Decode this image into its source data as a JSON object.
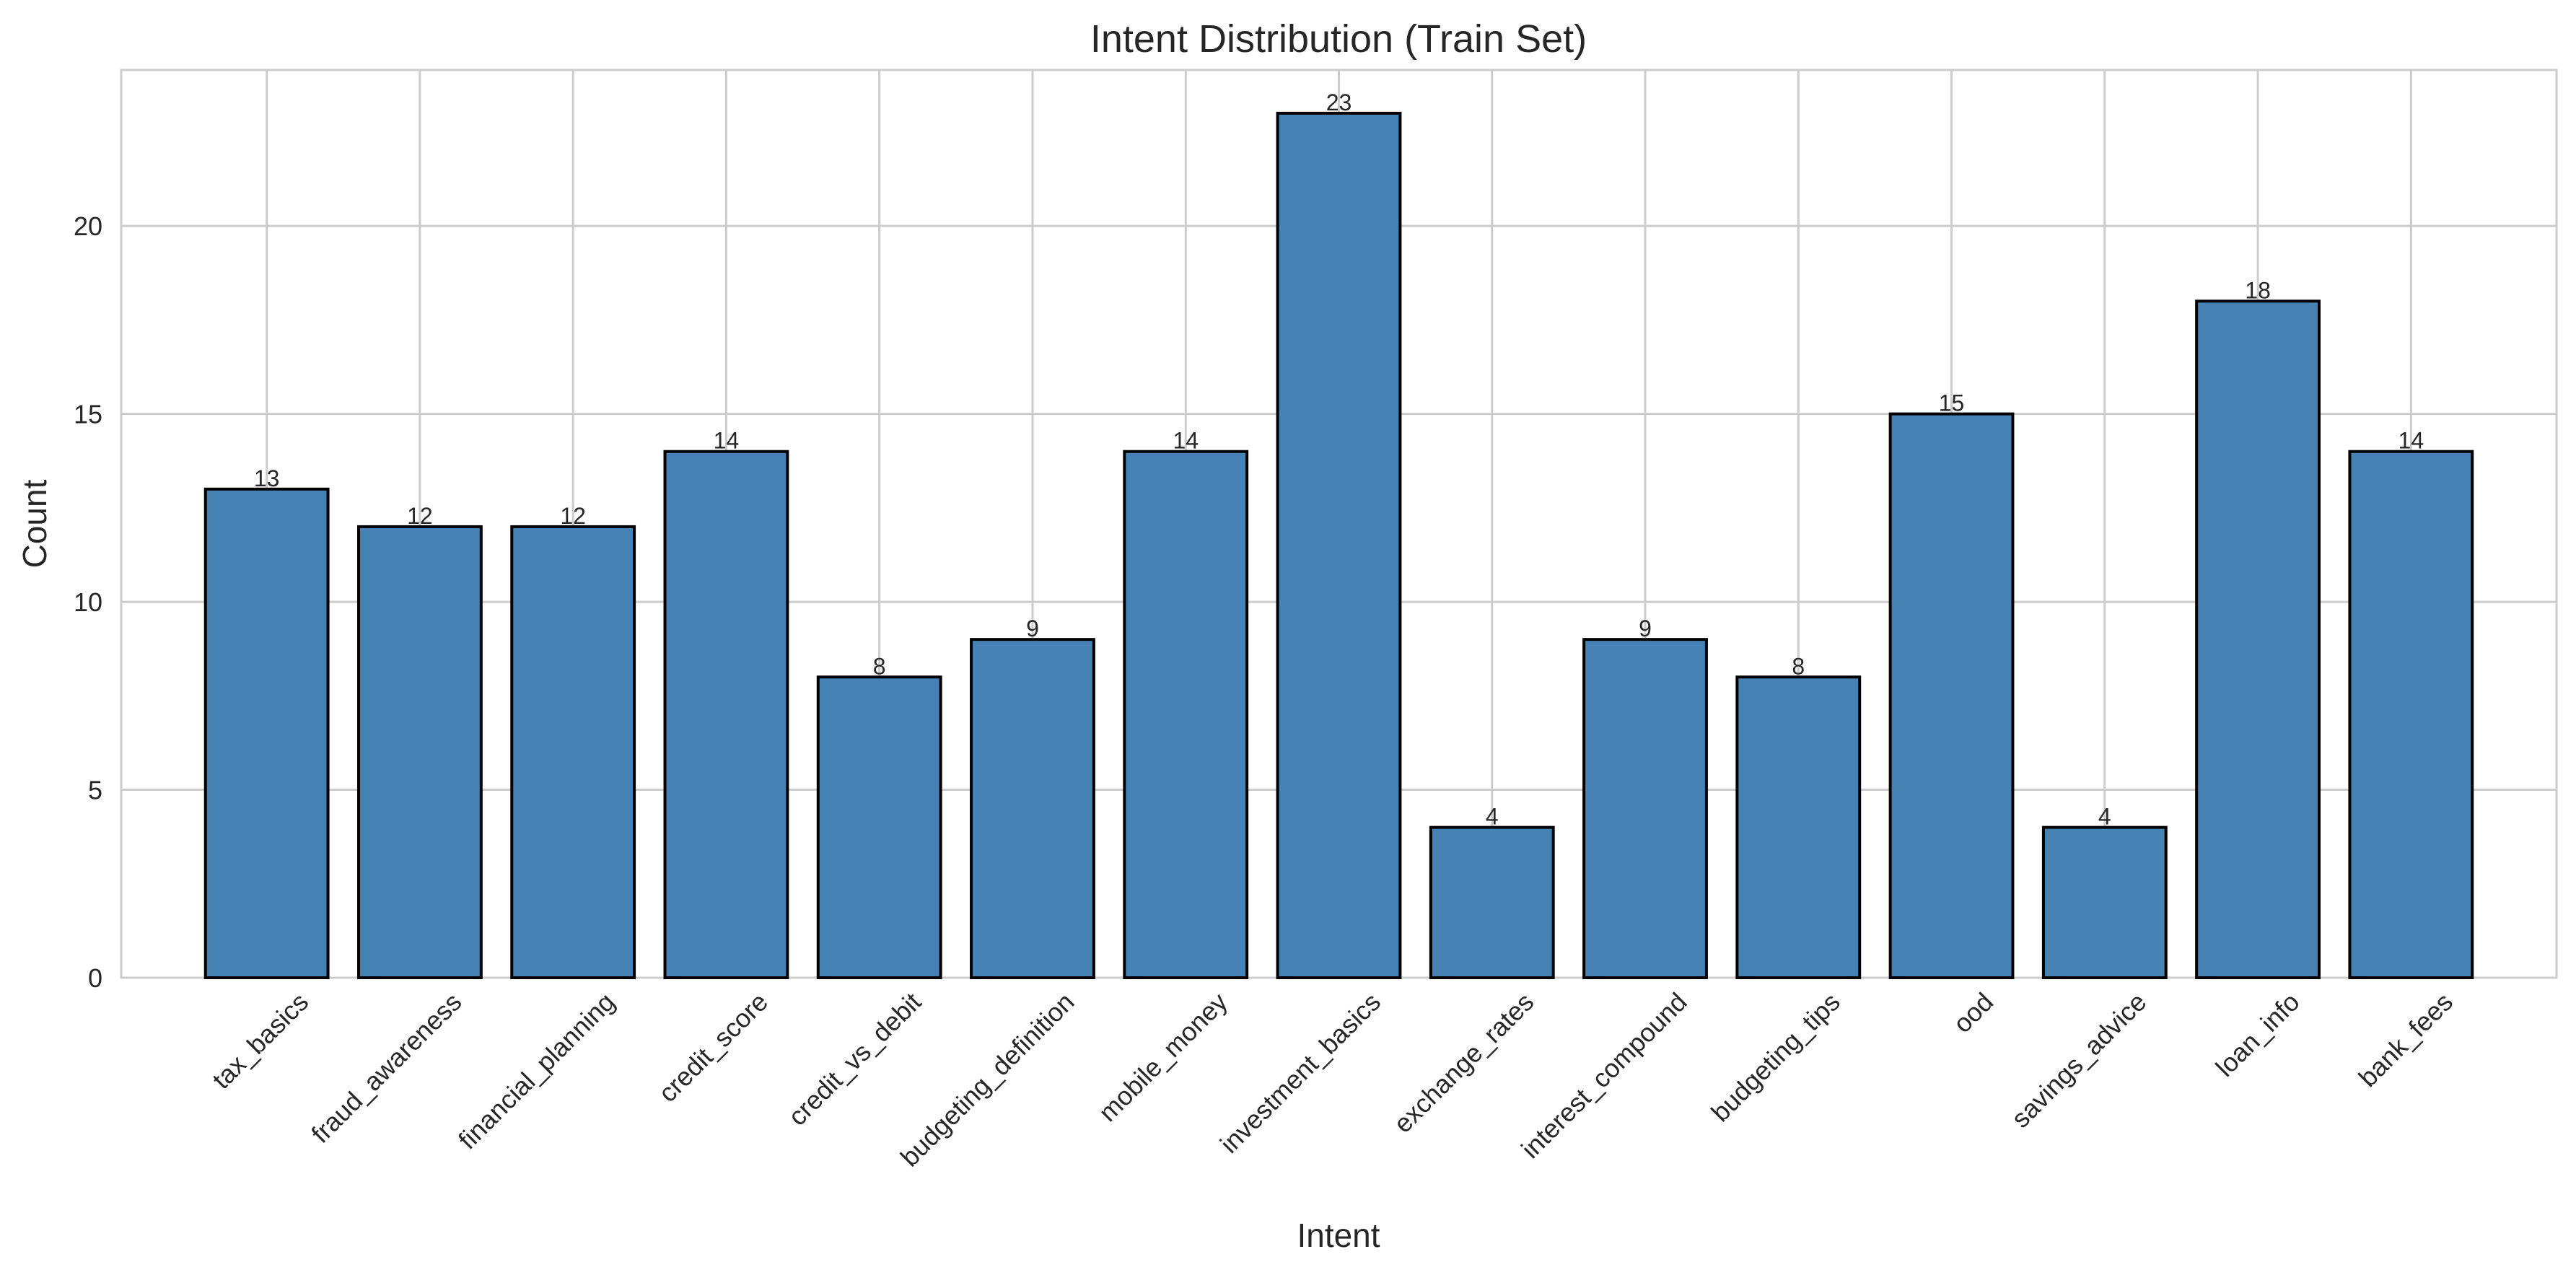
{
  "chart_data": {
    "type": "bar",
    "title": "Intent Distribution (Train Set)",
    "xlabel": "Intent",
    "ylabel": "Count",
    "categories": [
      "tax_basics",
      "fraud_awareness",
      "financial_planning",
      "credit_score",
      "credit_vs_debit",
      "budgeting_definition",
      "mobile_money",
      "investment_basics",
      "exchange_rates",
      "interest_compound",
      "budgeting_tips",
      "ood",
      "savings_advice",
      "loan_info",
      "bank_fees"
    ],
    "values": [
      13,
      12,
      12,
      14,
      8,
      9,
      14,
      23,
      4,
      9,
      8,
      15,
      4,
      18,
      14
    ],
    "ylim": [
      0,
      24.15
    ],
    "yticks": [
      0,
      5,
      10,
      15,
      20
    ],
    "grid": true,
    "bar_color": "#4682b4",
    "bar_edge_color": "#000000",
    "grid_color": "#cccccc",
    "data_labels": true
  }
}
